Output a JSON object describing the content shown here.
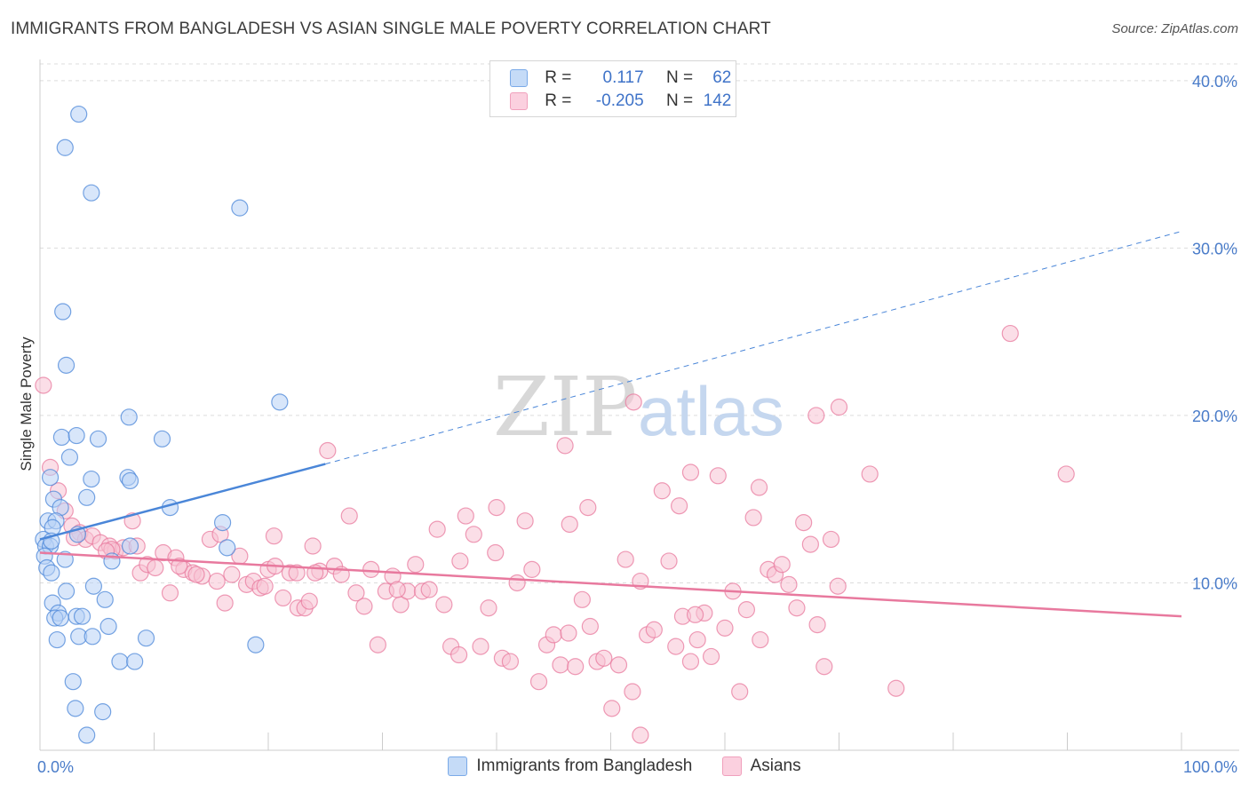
{
  "title": "IMMIGRANTS FROM BANGLADESH VS ASIAN SINGLE MALE POVERTY CORRELATION CHART",
  "source": "Source: ZipAtlas.com",
  "watermark": {
    "zip": "ZIP",
    "atlas": "atlas"
  },
  "legend": {
    "rows": [
      {
        "r_label": "R =",
        "r_value": "0.117",
        "n_label": "N =",
        "n_value": "62",
        "color": "#7aaae8",
        "fill": "#c5dbf7"
      },
      {
        "r_label": "R =",
        "r_value": "-0.205",
        "n_label": "N =",
        "n_value": "142",
        "color": "#f0a0bc",
        "fill": "#fbd0df"
      }
    ]
  },
  "bottom_legend": [
    {
      "label": "Immigrants from Bangladesh",
      "color": "#7aaae8",
      "fill": "#c5dbf7"
    },
    {
      "label": "Asians",
      "color": "#f0a0bc",
      "fill": "#fbd0df"
    }
  ],
  "chart_data": {
    "type": "scatter",
    "ylabel": "Single Male Poverty",
    "xlim": [
      0,
      100
    ],
    "ylim": [
      0,
      41
    ],
    "x_tick_labels": [
      {
        "value": 0,
        "label": "0.0%"
      },
      {
        "value": 100,
        "label": "100.0%"
      }
    ],
    "y_tick_labels": [
      {
        "value": 10,
        "label": "10.0%"
      },
      {
        "value": 20,
        "label": "20.0%"
      },
      {
        "value": 30,
        "label": "30.0%"
      },
      {
        "value": 40,
        "label": "40.0%"
      }
    ],
    "x_minor_ticks": [
      0,
      10,
      20,
      30,
      40,
      50,
      60,
      70,
      80,
      90,
      100
    ],
    "grid": "dashed horizontal",
    "series": [
      {
        "name": "Immigrants from Bangladesh",
        "color": "#4a86d8",
        "fill": "#b8d2f5",
        "points": [
          [
            3.4,
            38.0
          ],
          [
            2.2,
            36.0
          ],
          [
            4.5,
            33.3
          ],
          [
            17.5,
            32.4
          ],
          [
            2.0,
            26.2
          ],
          [
            2.3,
            23.0
          ],
          [
            21.0,
            20.8
          ],
          [
            7.8,
            19.9
          ],
          [
            1.9,
            18.7
          ],
          [
            3.2,
            18.8
          ],
          [
            5.1,
            18.6
          ],
          [
            10.7,
            18.6
          ],
          [
            2.6,
            17.5
          ],
          [
            0.9,
            16.3
          ],
          [
            4.5,
            16.2
          ],
          [
            7.7,
            16.3
          ],
          [
            7.9,
            16.1
          ],
          [
            1.2,
            15.0
          ],
          [
            4.1,
            15.1
          ],
          [
            1.8,
            14.5
          ],
          [
            11.4,
            14.5
          ],
          [
            0.7,
            13.7
          ],
          [
            1.4,
            13.7
          ],
          [
            1.1,
            13.3
          ],
          [
            16.0,
            13.6
          ],
          [
            0.3,
            12.6
          ],
          [
            0.5,
            12.2
          ],
          [
            0.9,
            12.2
          ],
          [
            1.0,
            12.5
          ],
          [
            3.3,
            12.9
          ],
          [
            7.9,
            12.2
          ],
          [
            16.4,
            12.1
          ],
          [
            0.4,
            11.6
          ],
          [
            2.2,
            11.4
          ],
          [
            6.3,
            11.3
          ],
          [
            0.6,
            10.9
          ],
          [
            1.0,
            10.6
          ],
          [
            4.7,
            9.8
          ],
          [
            2.3,
            9.5
          ],
          [
            1.1,
            8.8
          ],
          [
            5.7,
            9.0
          ],
          [
            1.6,
            8.2
          ],
          [
            3.2,
            8.0
          ],
          [
            3.7,
            8.0
          ],
          [
            1.3,
            7.9
          ],
          [
            1.8,
            7.9
          ],
          [
            6.0,
            7.4
          ],
          [
            1.5,
            6.6
          ],
          [
            3.4,
            6.8
          ],
          [
            4.6,
            6.8
          ],
          [
            9.3,
            6.7
          ],
          [
            18.9,
            6.3
          ],
          [
            7.0,
            5.3
          ],
          [
            8.3,
            5.3
          ],
          [
            2.9,
            4.1
          ],
          [
            3.1,
            2.5
          ],
          [
            5.5,
            2.3
          ],
          [
            4.1,
            0.9
          ]
        ],
        "trend_solid": [
          [
            0,
            12.6
          ],
          [
            25,
            17.1
          ]
        ],
        "trend_dashed": [
          [
            25,
            17.1
          ],
          [
            100,
            31.0
          ]
        ]
      },
      {
        "name": "Asians",
        "color": "#e8799e",
        "fill": "#f8c3d4",
        "points": [
          [
            0.3,
            21.8
          ],
          [
            0.9,
            16.9
          ],
          [
            1.6,
            15.5
          ],
          [
            2.2,
            14.3
          ],
          [
            2.8,
            13.4
          ],
          [
            3.5,
            13.0
          ],
          [
            4.0,
            12.6
          ],
          [
            4.6,
            12.8
          ],
          [
            5.3,
            12.4
          ],
          [
            6.1,
            12.2
          ],
          [
            6.6,
            11.9
          ],
          [
            7.3,
            12.1
          ],
          [
            8.1,
            13.7
          ],
          [
            8.8,
            10.6
          ],
          [
            9.4,
            11.1
          ],
          [
            10.1,
            10.9
          ],
          [
            10.8,
            11.8
          ],
          [
            11.4,
            9.4
          ],
          [
            11.9,
            11.5
          ],
          [
            12.6,
            10.8
          ],
          [
            13.4,
            10.6
          ],
          [
            14.2,
            10.4
          ],
          [
            14.9,
            12.6
          ],
          [
            15.5,
            10.1
          ],
          [
            16.2,
            8.8
          ],
          [
            16.8,
            10.5
          ],
          [
            17.5,
            11.6
          ],
          [
            18.1,
            9.9
          ],
          [
            18.7,
            10.1
          ],
          [
            19.3,
            9.7
          ],
          [
            20.0,
            10.8
          ],
          [
            20.6,
            11.0
          ],
          [
            21.3,
            9.1
          ],
          [
            21.9,
            10.6
          ],
          [
            22.6,
            8.5
          ],
          [
            23.2,
            8.5
          ],
          [
            23.9,
            12.2
          ],
          [
            24.5,
            10.7
          ],
          [
            25.2,
            17.9
          ],
          [
            25.8,
            11.0
          ],
          [
            26.4,
            10.5
          ],
          [
            27.1,
            14.0
          ],
          [
            27.7,
            9.4
          ],
          [
            28.4,
            8.6
          ],
          [
            29.0,
            10.8
          ],
          [
            29.6,
            6.3
          ],
          [
            30.3,
            9.5
          ],
          [
            30.9,
            10.4
          ],
          [
            31.6,
            8.7
          ],
          [
            32.2,
            9.5
          ],
          [
            32.9,
            11.1
          ],
          [
            33.5,
            9.5
          ],
          [
            34.1,
            9.6
          ],
          [
            34.8,
            13.2
          ],
          [
            35.4,
            8.7
          ],
          [
            36.0,
            6.2
          ],
          [
            36.7,
            5.7
          ],
          [
            37.3,
            14.0
          ],
          [
            38.0,
            12.9
          ],
          [
            38.6,
            6.2
          ],
          [
            39.3,
            8.5
          ],
          [
            39.9,
            11.8
          ],
          [
            40.5,
            5.5
          ],
          [
            41.2,
            5.3
          ],
          [
            41.8,
            10.0
          ],
          [
            42.5,
            13.7
          ],
          [
            43.1,
            10.8
          ],
          [
            43.7,
            4.1
          ],
          [
            44.4,
            6.3
          ],
          [
            45.0,
            6.9
          ],
          [
            45.6,
            5.1
          ],
          [
            46.3,
            7.0
          ],
          [
            46.9,
            5.0
          ],
          [
            47.5,
            9.0
          ],
          [
            48.2,
            7.4
          ],
          [
            48.8,
            5.3
          ],
          [
            49.4,
            5.5
          ],
          [
            50.1,
            2.5
          ],
          [
            50.7,
            5.1
          ],
          [
            51.3,
            11.4
          ],
          [
            51.9,
            3.5
          ],
          [
            52.6,
            10.1
          ],
          [
            53.2,
            6.9
          ],
          [
            53.8,
            7.2
          ],
          [
            54.5,
            15.5
          ],
          [
            55.1,
            11.3
          ],
          [
            55.7,
            6.2
          ],
          [
            56.3,
            8.0
          ],
          [
            57.0,
            5.3
          ],
          [
            57.6,
            6.6
          ],
          [
            58.2,
            8.2
          ],
          [
            58.8,
            5.6
          ],
          [
            59.4,
            16.4
          ],
          [
            60.0,
            7.3
          ],
          [
            60.7,
            9.5
          ],
          [
            61.3,
            3.5
          ],
          [
            61.9,
            8.4
          ],
          [
            62.5,
            13.9
          ],
          [
            63.1,
            6.6
          ],
          [
            63.8,
            10.8
          ],
          [
            64.4,
            10.5
          ],
          [
            65.0,
            11.1
          ],
          [
            65.6,
            9.9
          ],
          [
            66.3,
            8.5
          ],
          [
            66.9,
            13.6
          ],
          [
            67.5,
            12.3
          ],
          [
            68.1,
            7.5
          ],
          [
            68.7,
            5.0
          ],
          [
            69.3,
            12.6
          ],
          [
            69.9,
            9.8
          ],
          [
            52.0,
            20.8
          ],
          [
            46.0,
            18.2
          ],
          [
            72.7,
            16.5
          ],
          [
            63.0,
            15.7
          ],
          [
            48.0,
            14.5
          ],
          [
            57.0,
            16.6
          ],
          [
            68.0,
            20.0
          ],
          [
            70.0,
            20.5
          ],
          [
            85.0,
            24.9
          ],
          [
            75.0,
            3.7
          ],
          [
            89.9,
            16.5
          ],
          [
            46.4,
            13.5
          ],
          [
            56.0,
            14.6
          ],
          [
            52.6,
            0.9
          ],
          [
            40.0,
            14.5
          ],
          [
            36.8,
            11.3
          ],
          [
            57.4,
            8.1
          ],
          [
            15.8,
            12.9
          ],
          [
            20.5,
            12.8
          ],
          [
            22.5,
            10.6
          ],
          [
            23.6,
            8.9
          ],
          [
            3.0,
            12.7
          ],
          [
            6.3,
            12.0
          ],
          [
            5.8,
            11.9
          ],
          [
            8.5,
            12.2
          ],
          [
            12.2,
            11.0
          ],
          [
            13.7,
            10.5
          ],
          [
            19.7,
            9.8
          ],
          [
            24.1,
            10.6
          ],
          [
            31.3,
            9.6
          ]
        ],
        "trend_solid": [
          [
            0,
            11.8
          ],
          [
            100,
            8.0
          ]
        ]
      }
    ]
  }
}
